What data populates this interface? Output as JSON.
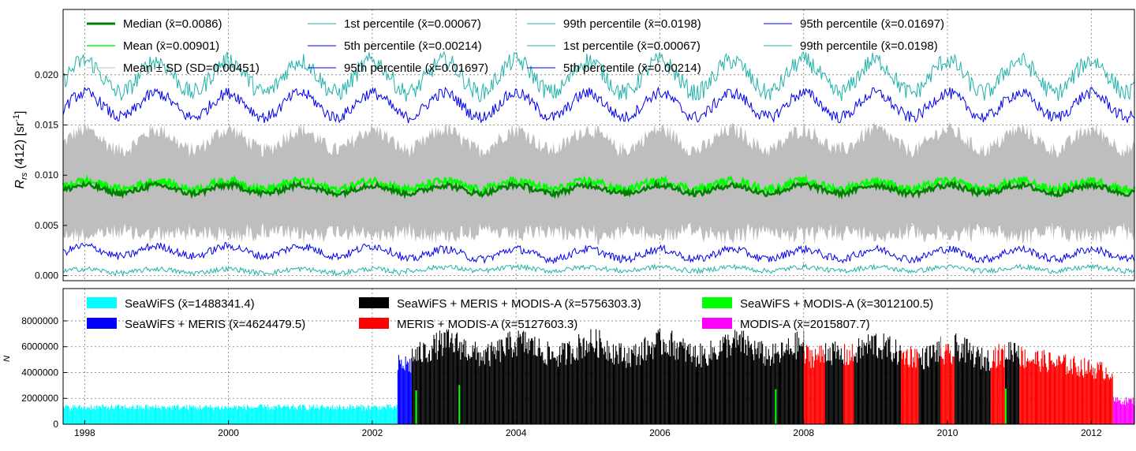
{
  "chart_data": [
    {
      "type": "line",
      "ylabel_main": "R",
      "ylabel_sub": "rs",
      "ylabel_rest": " (412) [sr",
      "ylabel_sup": "-1",
      "ylabel_close": "]",
      "xlim": [
        1997.7,
        2012.6
      ],
      "ylim": [
        -0.0005,
        0.0265
      ],
      "yticks": [
        0.0,
        0.005,
        0.01,
        0.015,
        0.02
      ],
      "ytick_labels": [
        "0.000",
        "0.005",
        "0.010",
        "0.015",
        "0.020"
      ],
      "grid": true,
      "legend_position": "top",
      "series": [
        {
          "label": "Median (x̄=0.0086)",
          "color": "#008000",
          "mean": 0.0086,
          "amplitude": 0.0004,
          "noise": 0.0003
        },
        {
          "label": "Mean (x̄=0.00901)",
          "color": "#00ff00",
          "mean": 0.00901,
          "amplitude": 0.0004,
          "noise": 0.0004
        },
        {
          "label": "Mean ± SD (SD=0.00451)",
          "color": "#bebebe",
          "sd": 0.00451
        },
        {
          "label": "1st percentile (x̄=0.00067)",
          "color": "#20b2aa",
          "mean": 0.00067
        },
        {
          "label": "5th percentile (x̄=0.00214)",
          "color": "#0000ee",
          "mean": 0.00214
        },
        {
          "label": "95th percentile (x̄=0.01697)",
          "color": "#0000ee",
          "mean": 0.01697
        },
        {
          "label": "99th percentile (x̄=0.0198)",
          "color": "#20b2aa",
          "mean": 0.0198
        },
        {
          "label": "1st percentile (x̄=0.00067)",
          "color": "#20b2aa",
          "mean": 0.00067
        },
        {
          "label": "5th percentile (x̄=0.00214)",
          "color": "#0000ee",
          "mean": 0.00214
        },
        {
          "label": "95th percentile (x̄=0.01697)",
          "color": "#0000ee",
          "mean": 0.01697
        },
        {
          "label": "99th percentile (x̄=0.0198)",
          "color": "#20b2aa",
          "mean": 0.0198
        }
      ]
    },
    {
      "type": "bar",
      "ylabel": "N",
      "xlim": [
        1997.7,
        2012.6
      ],
      "ylim": [
        0,
        10500000
      ],
      "yticks": [
        0,
        2000000,
        4000000,
        6000000,
        8000000
      ],
      "ytick_labels": [
        "0",
        "2000000",
        "4000000",
        "6000000",
        "8000000"
      ],
      "xticks": [
        1998,
        2000,
        2002,
        2004,
        2006,
        2008,
        2010,
        2012
      ],
      "xtick_labels": [
        "1998",
        "2000",
        "2002",
        "2004",
        "2006",
        "2008",
        "2010",
        "2012"
      ],
      "grid": true,
      "legend_position": "top",
      "series": [
        {
          "label": "SeaWiFS (x̄=1488341.4)",
          "color": "#00ffff",
          "mean": 1488341.4
        },
        {
          "label": "SeaWiFS + MERIS (x̄=4624479.5)",
          "color": "#0000ff",
          "mean": 4624479.5
        },
        {
          "label": "SeaWiFS + MERIS + MODIS-A (x̄=5756303.3)",
          "color": "#000000",
          "mean": 5756303.3
        },
        {
          "label": "MERIS + MODIS-A (x̄=5127603.3)",
          "color": "#ff0000",
          "mean": 5127603.3
        },
        {
          "label": "SeaWiFS + MODIS-A (x̄=3012100.5)",
          "color": "#00ff00",
          "mean": 3012100.5
        },
        {
          "label": "MODIS-A (x̄=2015807.7)",
          "color": "#ff00ff",
          "mean": 2015807.7
        }
      ],
      "periods": [
        {
          "series": 0,
          "start": 1997.7,
          "end": 2002.35
        },
        {
          "series": 1,
          "start": 2002.35,
          "end": 2002.55
        },
        {
          "series": 2,
          "start": 2002.55,
          "end": 2008.0
        },
        {
          "series": 3,
          "start": 2008.0,
          "end": 2008.3
        },
        {
          "series": 2,
          "start": 2008.3,
          "end": 2008.55
        },
        {
          "series": 3,
          "start": 2008.55,
          "end": 2008.7
        },
        {
          "series": 2,
          "start": 2008.7,
          "end": 2009.35
        },
        {
          "series": 3,
          "start": 2009.35,
          "end": 2009.6
        },
        {
          "series": 2,
          "start": 2009.6,
          "end": 2009.9
        },
        {
          "series": 3,
          "start": 2009.9,
          "end": 2010.1
        },
        {
          "series": 2,
          "start": 2010.1,
          "end": 2010.6
        },
        {
          "series": 3,
          "start": 2010.6,
          "end": 2010.8
        },
        {
          "series": 2,
          "start": 2010.8,
          "end": 2011.0
        },
        {
          "series": 3,
          "start": 2011.0,
          "end": 2012.3
        },
        {
          "series": 5,
          "start": 2012.3,
          "end": 2012.6
        }
      ]
    }
  ]
}
